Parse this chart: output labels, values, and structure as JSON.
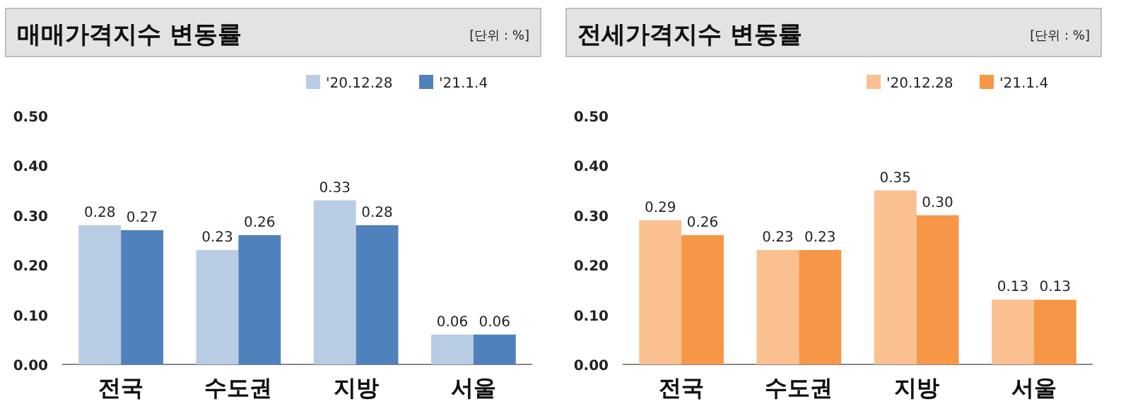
{
  "chart_data": [
    {
      "type": "bar",
      "title": "매매가격지수 변동률",
      "annotations": [
        "[단위 : %]"
      ],
      "categories": [
        "전국",
        "수도권",
        "지방",
        "서울"
      ],
      "ylim": [
        0,
        0.5
      ],
      "yticks": [
        {
          "value": 0,
          "label": "0.00"
        },
        {
          "value": 0.1,
          "label": "0.10"
        },
        {
          "value": 0.2,
          "label": "0.20"
        },
        {
          "value": 0.3,
          "label": "0.30"
        },
        {
          "value": 0.4,
          "label": "0.40"
        },
        {
          "value": 0.5,
          "label": "0.50"
        }
      ],
      "legend": "top right",
      "series": [
        {
          "name": "'20.12.28",
          "color": "#b8cce4",
          "values": [
            0.28,
            0.23,
            0.33,
            0.06
          ],
          "value_labels": [
            "0.28",
            "0.23",
            "0.33",
            "0.06"
          ]
        },
        {
          "name": "'21.1.4",
          "color": "#4f81bd",
          "values": [
            0.27,
            0.26,
            0.28,
            0.06
          ],
          "value_labels": [
            "0.27",
            "0.26",
            "0.28",
            "0.06"
          ]
        }
      ]
    },
    {
      "type": "bar",
      "title": "전세가격지수 변동률",
      "annotations": [
        "[단위 : %]"
      ],
      "categories": [
        "전국",
        "수도권",
        "지방",
        "서울"
      ],
      "ylim": [
        0,
        0.5
      ],
      "yticks": [
        {
          "value": 0,
          "label": "0.00"
        },
        {
          "value": 0.1,
          "label": "0.10"
        },
        {
          "value": 0.2,
          "label": "0.20"
        },
        {
          "value": 0.3,
          "label": "0.30"
        },
        {
          "value": 0.4,
          "label": "0.40"
        },
        {
          "value": 0.5,
          "label": "0.50"
        }
      ],
      "legend": "top right",
      "series": [
        {
          "name": "'20.12.28",
          "color": "#fac090",
          "values": [
            0.29,
            0.23,
            0.35,
            0.13
          ],
          "value_labels": [
            "0.29",
            "0.23",
            "0.35",
            "0.13"
          ]
        },
        {
          "name": "'21.1.4",
          "color": "#f79646",
          "values": [
            0.26,
            0.23,
            0.3,
            0.13
          ],
          "value_labels": [
            "0.26",
            "0.23",
            "0.30",
            "0.13"
          ]
        }
      ]
    }
  ]
}
